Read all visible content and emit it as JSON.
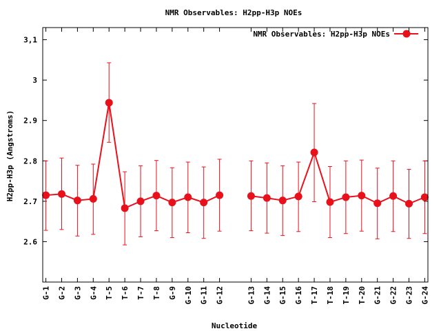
{
  "chart_data": {
    "type": "line",
    "title": "NMR Observables: H2pp-H3p NOEs",
    "xlabel": "Nucleotide",
    "ylabel": "H2pp-H3p (Angstroms)",
    "ylim": [
      2.5,
      3.13
    ],
    "yticks": [
      2.6,
      2.7,
      2.8,
      2.9,
      3,
      3.1
    ],
    "ytick_labels": [
      "2.6",
      "2.7",
      "2.8",
      "2.9",
      "3",
      "3,1"
    ],
    "grid": false,
    "legend_position": "top-right",
    "categories": [
      "G-1",
      "G-2",
      "G-3",
      "G-4",
      "T-5",
      "T-6",
      "T-7",
      "T-8",
      "G-9",
      "G-10",
      "G-11",
      "G-12",
      "G-13",
      "G-14",
      "G-15",
      "G-16",
      "T-17",
      "T-18",
      "T-19",
      "T-20",
      "G-21",
      "G-22",
      "G-23",
      "G-24"
    ],
    "x": [
      1,
      2,
      3,
      4,
      5,
      6,
      7,
      8,
      9,
      10,
      11,
      12,
      14,
      15,
      16,
      17,
      18,
      19,
      20,
      21,
      22,
      23,
      24,
      25
    ],
    "xlim": [
      0.8,
      25.2
    ],
    "series": [
      {
        "name": "NMR Observables: H2pp-H3p NOEs",
        "color": "#e8101a",
        "values": [
          2.715,
          2.718,
          2.702,
          2.706,
          2.944,
          2.683,
          2.7,
          2.714,
          2.697,
          2.71,
          2.697,
          2.715,
          2.713,
          2.708,
          2.702,
          2.712,
          2.821,
          2.698,
          2.71,
          2.714,
          2.695,
          2.713,
          2.694,
          2.71
        ],
        "err_low": [
          2.628,
          2.63,
          2.614,
          2.618,
          2.846,
          2.592,
          2.612,
          2.627,
          2.61,
          2.622,
          2.608,
          2.626,
          2.627,
          2.621,
          2.615,
          2.625,
          2.699,
          2.61,
          2.62,
          2.626,
          2.607,
          2.625,
          2.608,
          2.62
        ],
        "err_high": [
          2.8,
          2.807,
          2.789,
          2.792,
          3.043,
          2.773,
          2.788,
          2.801,
          2.783,
          2.797,
          2.785,
          2.804,
          2.8,
          2.795,
          2.788,
          2.797,
          2.942,
          2.786,
          2.8,
          2.802,
          2.782,
          2.8,
          2.779,
          2.8
        ]
      }
    ]
  }
}
